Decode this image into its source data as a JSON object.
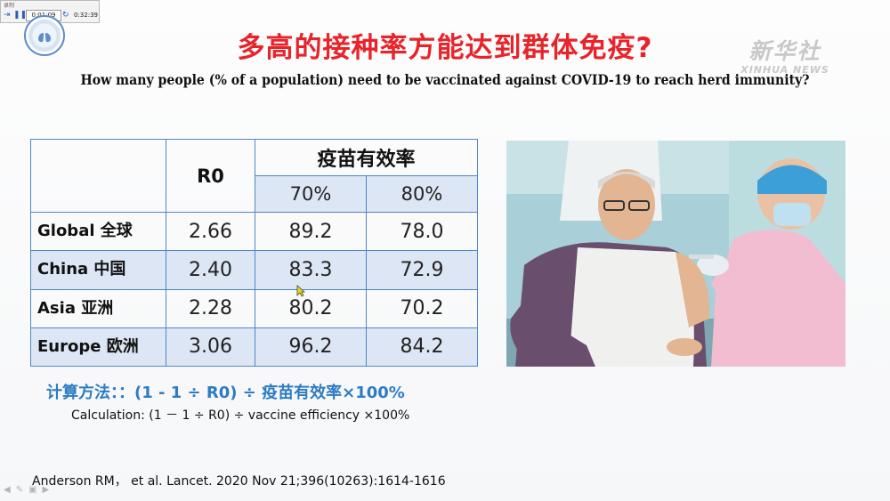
{
  "player": {
    "caption": "录制",
    "elapsed": "0:01:09",
    "total": "0:32:39"
  },
  "title_cn": "多高的接种率方能达到群体免疫?",
  "title_en": "How many people (% of a population) need to be vaccinated against COVID-19 to reach herd immunity?",
  "watermark": {
    "cn": "新华社",
    "en": "XINHUA NEWS"
  },
  "table": {
    "r0_header": "R0",
    "efficacy_header": "疫苗有效率",
    "efficacy_levels": [
      "70%",
      "80%"
    ],
    "rows": [
      {
        "label": "Global 全球",
        "r0": "2.66",
        "v70": "89.2",
        "v80": "78.0"
      },
      {
        "label": "China 中国",
        "r0": "2.40",
        "v70": "83.3",
        "v80": "72.9"
      },
      {
        "label": "Asia 亚洲",
        "r0": "2.28",
        "v70": "80.2",
        "v80": "70.2"
      },
      {
        "label": "Europe 欧洲",
        "r0": "3.06",
        "v70": "96.2",
        "v80": "84.2"
      }
    ]
  },
  "formula_cn": "计算方法：：(1 - 1 ÷ R0) ÷ 疫苗有效率×100%",
  "formula_en": "Calculation: (1 － 1 ÷ R0) ÷ vaccine efficiency ×100%",
  "reference": "Anderson RM，  et al. Lancet. 2020 Nov 21;396(10263):1614-1616",
  "colors": {
    "title_red": "#e8242b",
    "table_border": "#4f87c7",
    "table_shade": "#dce6f4",
    "formula_blue": "#2e7cc4"
  }
}
